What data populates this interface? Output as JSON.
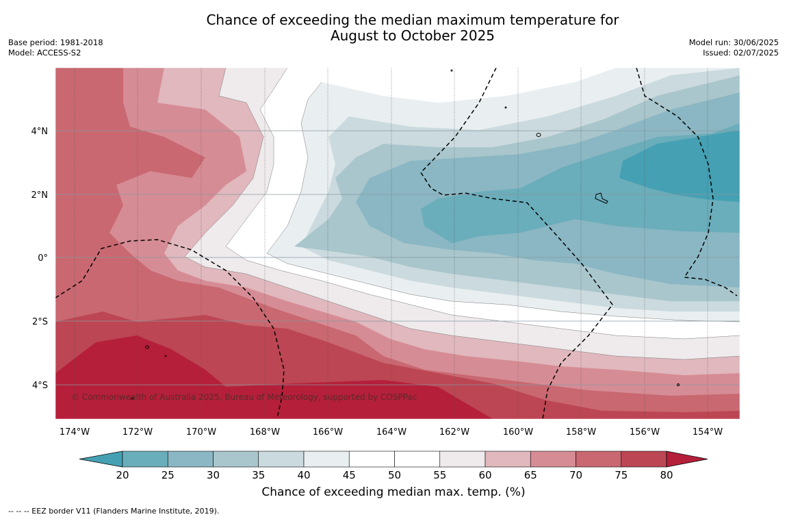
{
  "title": {
    "line1": "Chance of exceeding the median maximum temperature for",
    "line2": "August to October 2025"
  },
  "meta_left": {
    "base_period": "Base period: 1981-2018",
    "model": "Model: ACCESS-S2"
  },
  "meta_right": {
    "model_run": "Model run: 30/06/2025",
    "issued": "Issued: 02/07/2025"
  },
  "map": {
    "x_ticks": [
      "174°W",
      "172°W",
      "170°W",
      "168°W",
      "166°W",
      "164°W",
      "162°W",
      "160°W",
      "158°W",
      "156°W",
      "154°W"
    ],
    "y_ticks": [
      "4°N",
      "2°N",
      "0°",
      "2°S",
      "4°S"
    ],
    "copyright": "© Commonwealth of Australia 2025, Bureau of Meteorology, supported by COSPPac"
  },
  "colorbar": {
    "ticks": [
      "20",
      "25",
      "30",
      "35",
      "40",
      "45",
      "50",
      "55",
      "60",
      "65",
      "70",
      "75",
      "80"
    ],
    "colors": [
      "#45a0b3",
      "#6aadbb",
      "#8ab7c3",
      "#a9c6cc",
      "#cbdade",
      "#e9eff1",
      "#ffffff",
      "#ffffff",
      "#efebec",
      "#e0b8bd",
      "#d68c95",
      "#c96871",
      "#bc4653",
      "#b51f3a"
    ],
    "label": "Chance of exceeding median max. temp. (%)"
  },
  "footnote": "-- -- -- EEZ border V11 (Flanders Marine Institute, 2019)."
}
